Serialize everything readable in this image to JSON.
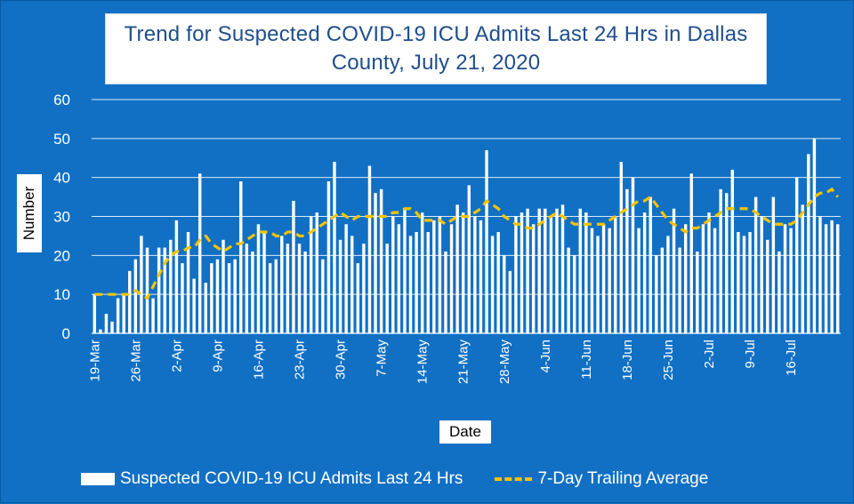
{
  "chart_data": {
    "type": "bar",
    "title_lines": [
      "Trend for Suspected COVID-19 ICU Admits Last 24 Hrs in Dallas",
      "County, July 21, 2020"
    ],
    "xlabel": "Date",
    "ylabel": "Number",
    "ylim": [
      0,
      60
    ],
    "yticks": [
      "0",
      "10",
      "20",
      "30",
      "40",
      "50",
      "60"
    ],
    "grid": true,
    "legend_position": "bottom",
    "x_tick_labels": [
      "19-Mar",
      "26-Mar",
      "2-Apr",
      "9-Apr",
      "16-Apr",
      "23-Apr",
      "30-Apr",
      "7-May",
      "14-May",
      "21-May",
      "28-May",
      "4-Jun",
      "11-Jun",
      "18-Jun",
      "25-Jun",
      "2-Jul",
      "9-Jul",
      "16-Jul"
    ],
    "x_tick_day_index": [
      0,
      7,
      14,
      21,
      28,
      35,
      42,
      49,
      56,
      63,
      70,
      77,
      84,
      91,
      98,
      105,
      112,
      119
    ],
    "series": [
      {
        "name": "Suspected COVID-19 ICU Admits Last 24 Hrs",
        "type": "bar",
        "color": "#ffffff",
        "values": [
          10,
          1,
          5,
          3,
          9,
          10,
          16,
          19,
          25,
          22,
          9,
          22,
          22,
          24,
          29,
          18,
          26,
          14,
          41,
          13,
          18,
          19,
          24,
          18,
          19,
          39,
          23,
          21,
          28,
          26,
          18,
          19,
          25,
          23,
          34,
          23,
          21,
          30,
          31,
          19,
          39,
          44,
          24,
          28,
          25,
          18,
          23,
          43,
          36,
          37,
          23,
          30,
          28,
          32,
          25,
          26,
          31,
          26,
          29,
          30,
          21,
          28,
          33,
          31,
          38,
          30,
          29,
          47,
          25,
          26,
          20,
          16,
          30,
          31,
          32,
          28,
          32,
          32,
          30,
          32,
          33,
          22,
          20,
          32,
          31,
          27,
          25,
          28,
          27,
          30,
          44,
          37,
          40,
          27,
          31,
          35,
          20,
          22,
          25,
          32,
          22,
          28,
          41,
          21,
          28,
          31,
          27,
          37,
          36,
          42,
          26,
          25,
          26,
          35,
          30,
          24,
          35,
          21,
          28,
          27,
          40,
          33,
          46,
          50,
          30,
          28,
          29,
          28
        ]
      },
      {
        "name": "7-Day Trailing Average",
        "type": "line",
        "style": "dashed",
        "color": "#f5c400",
        "values": [
          10,
          10,
          10,
          10,
          10,
          10,
          10,
          11,
          10,
          9,
          12,
          15,
          18,
          20,
          21,
          21,
          22,
          22,
          24,
          25,
          23,
          22,
          21,
          22,
          23,
          23,
          24,
          25,
          26,
          26,
          26,
          25,
          25,
          26,
          26,
          25,
          25,
          26,
          27,
          28,
          29,
          30,
          31,
          30,
          29,
          30,
          30,
          30,
          30,
          30,
          30,
          31,
          31,
          32,
          32,
          31,
          29,
          29,
          29,
          29,
          28,
          29,
          30,
          30,
          30,
          31,
          32,
          34,
          33,
          32,
          30,
          29,
          28,
          28,
          27,
          27,
          28,
          29,
          30,
          31,
          30,
          29,
          28,
          28,
          28,
          28,
          28,
          28,
          29,
          30,
          31,
          32,
          33,
          34,
          34,
          35,
          33,
          31,
          29,
          28,
          27,
          26,
          27,
          27,
          28,
          29,
          30,
          31,
          32,
          32,
          32,
          32,
          32,
          31,
          30,
          29,
          28,
          28,
          28,
          28,
          29,
          31,
          33,
          35,
          36,
          36,
          37,
          35
        ]
      }
    ]
  },
  "legend": {
    "bar_label": "Suspected COVID-19 ICU Admits Last 24 Hrs",
    "line_label": "7-Day Trailing Average"
  }
}
